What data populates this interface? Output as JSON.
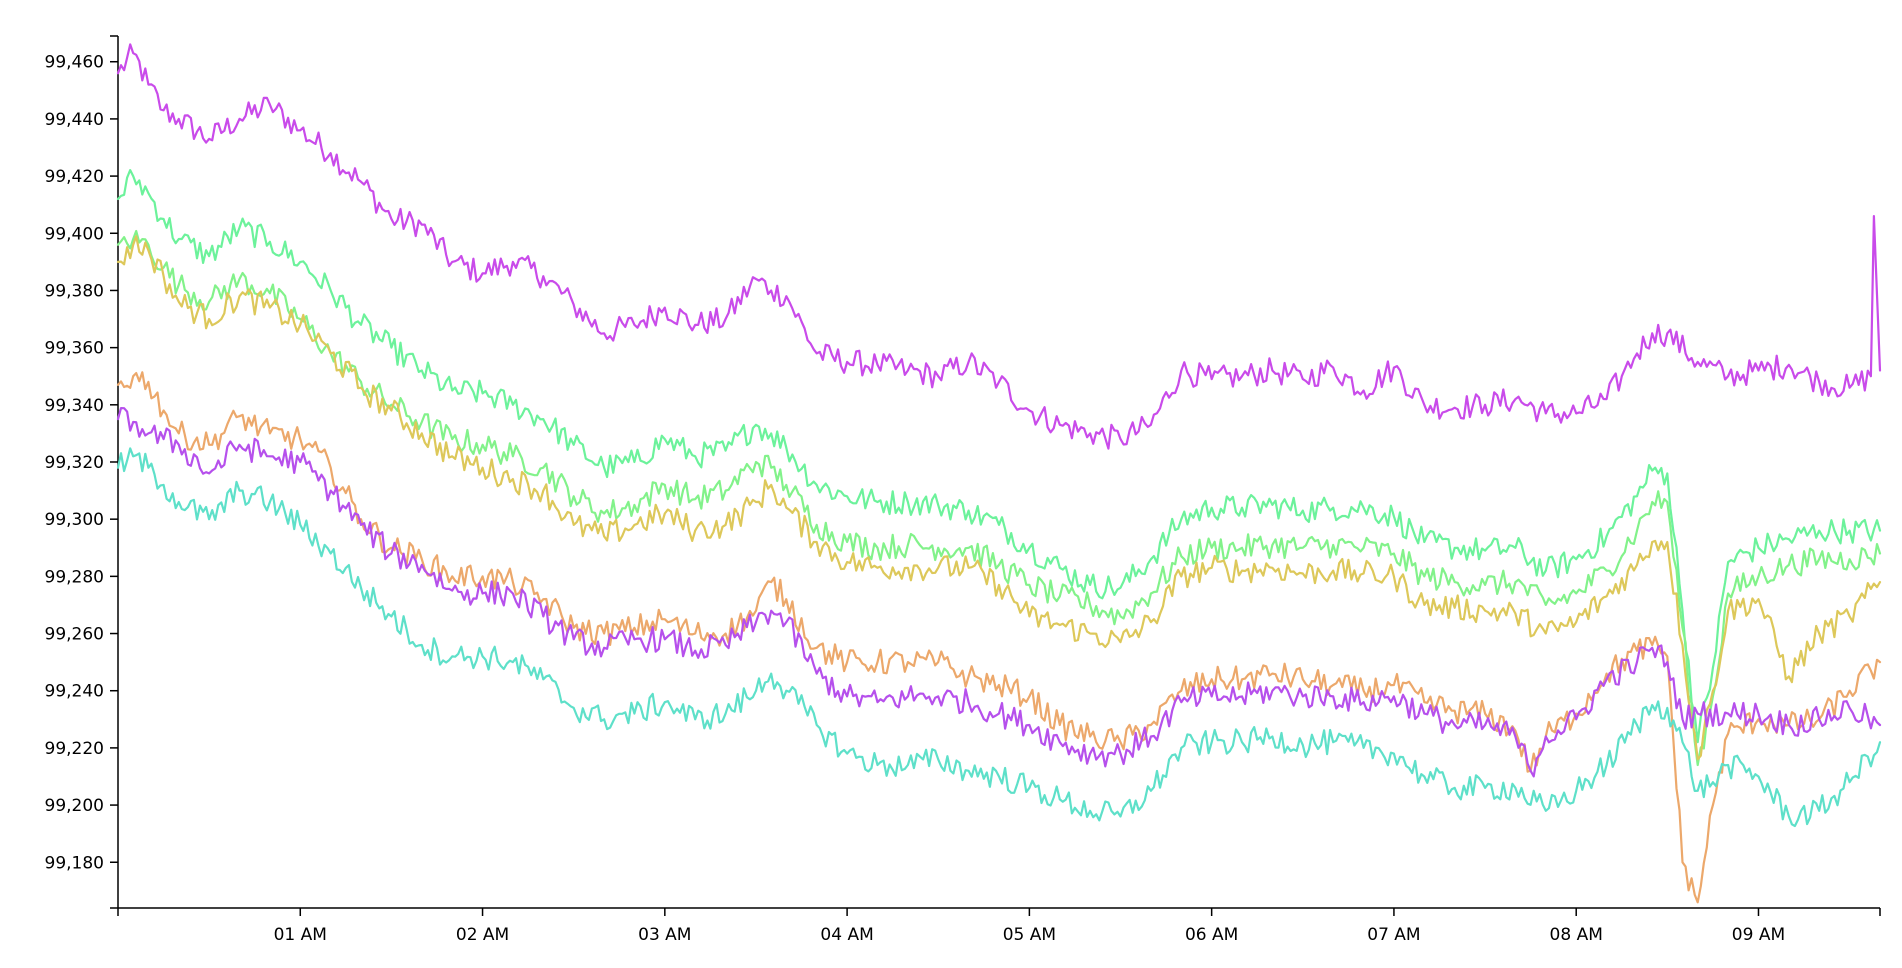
{
  "chart_data": {
    "type": "line",
    "title": "",
    "xlabel": "",
    "ylabel": "",
    "x_domain": [
      "00:00",
      "09:40"
    ],
    "ylim": [
      99164,
      99469
    ],
    "x_ticks": [
      {
        "time": "01:00",
        "label": "01 AM"
      },
      {
        "time": "02:00",
        "label": "02 AM"
      },
      {
        "time": "03:00",
        "label": "03 AM"
      },
      {
        "time": "04:00",
        "label": "04 AM"
      },
      {
        "time": "05:00",
        "label": "05 AM"
      },
      {
        "time": "06:00",
        "label": "06 AM"
      },
      {
        "time": "07:00",
        "label": "07 AM"
      },
      {
        "time": "08:00",
        "label": "08 AM"
      },
      {
        "time": "09:00",
        "label": "09 AM"
      }
    ],
    "y_ticks": [
      {
        "value": 99180,
        "label": "99,180"
      },
      {
        "value": 99200,
        "label": "99,200"
      },
      {
        "value": 99220,
        "label": "99,220"
      },
      {
        "value": 99240,
        "label": "99,240"
      },
      {
        "value": 99260,
        "label": "99,260"
      },
      {
        "value": 99280,
        "label": "99,280"
      },
      {
        "value": 99300,
        "label": "99,300"
      },
      {
        "value": 99320,
        "label": "99,320"
      },
      {
        "value": 99340,
        "label": "99,340"
      },
      {
        "value": 99360,
        "label": "99,360"
      },
      {
        "value": 99380,
        "label": "99,380"
      },
      {
        "value": 99400,
        "label": "99,400"
      },
      {
        "value": 99420,
        "label": "99,420"
      },
      {
        "value": 99440,
        "label": "99,440"
      },
      {
        "value": 99460,
        "label": "99,460"
      }
    ],
    "grid": false,
    "legend": "none",
    "series": [
      {
        "color": "#c94bea",
        "x": [
          "00:00",
          "00:05",
          "00:10",
          "00:15",
          "00:20",
          "00:30",
          "00:40",
          "00:50",
          "01:00",
          "01:10",
          "01:20",
          "01:30",
          "01:40",
          "01:50",
          "02:00",
          "02:10",
          "02:20",
          "02:30",
          "02:40",
          "02:50",
          "03:00",
          "03:10",
          "03:20",
          "03:30",
          "03:35",
          "03:40",
          "03:50",
          "04:00",
          "04:10",
          "04:20",
          "04:30",
          "04:40",
          "04:50",
          "05:00",
          "05:10",
          "05:20",
          "05:30",
          "05:40",
          "05:50",
          "06:00",
          "06:10",
          "06:20",
          "06:30",
          "06:40",
          "06:50",
          "07:00",
          "07:10",
          "07:20",
          "07:30",
          "07:40",
          "07:50",
          "08:00",
          "08:10",
          "08:15",
          "08:20",
          "08:25",
          "08:30",
          "08:40",
          "08:50",
          "09:00",
          "09:10",
          "09:20",
          "09:30",
          "09:37",
          "09:38",
          "09:40"
        ],
        "y": [
          99456,
          99463,
          99452,
          99443,
          99440,
          99433,
          99440,
          99445,
          99436,
          99428,
          99418,
          99405,
          99403,
          99390,
          99386,
          99390,
          99385,
          99375,
          99365,
          99368,
          99374,
          99368,
          99370,
          99384,
          99380,
          99378,
          99358,
          99355,
          99354,
          99352,
          99350,
          99355,
          99348,
          99338,
          99333,
          99330,
          99328,
          99333,
          99352,
          99349,
          99350,
          99352,
          99349,
          99353,
          99345,
          99353,
          99340,
          99339,
          99340,
          99342,
          99337,
          99337,
          99342,
          99350,
          99358,
          99365,
          99365,
          99355,
          99350,
          99352,
          99354,
          99348,
          99346,
          99350,
          99406,
          99352
        ]
      },
      {
        "color": "#6cf29b",
        "x": [
          "00:00",
          "00:05",
          "00:10",
          "00:15",
          "00:20",
          "00:30",
          "00:40",
          "00:50",
          "01:00",
          "01:10",
          "01:20",
          "01:30",
          "01:40",
          "01:50",
          "02:00",
          "02:10",
          "02:20",
          "02:30",
          "02:40",
          "02:50",
          "03:00",
          "03:10",
          "03:20",
          "03:30",
          "03:35",
          "03:40",
          "03:50",
          "04:00",
          "04:10",
          "04:20",
          "04:30",
          "04:40",
          "04:50",
          "05:00",
          "05:10",
          "05:20",
          "05:30",
          "05:40",
          "05:50",
          "06:00",
          "06:10",
          "06:20",
          "06:30",
          "06:40",
          "06:50",
          "07:00",
          "07:10",
          "07:20",
          "07:30",
          "07:40",
          "07:50",
          "08:00",
          "08:10",
          "08:20",
          "08:25",
          "08:30",
          "08:35",
          "08:40",
          "08:45",
          "08:50",
          "09:00",
          "09:10",
          "09:20",
          "09:30",
          "09:40"
        ],
        "y": [
          99412,
          99420,
          99414,
          99405,
          99398,
          99392,
          99402,
          99397,
          99390,
          99380,
          99368,
          99360,
          99352,
          99345,
          99344,
          99340,
          99335,
          99326,
          99318,
          99320,
          99328,
          99322,
          99324,
          99333,
          99330,
          99325,
          99312,
          99308,
          99306,
          99306,
          99305,
          99303,
          99298,
          99290,
          99283,
          99277,
          99276,
          99286,
          99300,
          99304,
          99304,
          99305,
          99303,
          99304,
          99304,
          99301,
          99292,
          99290,
          99289,
          99290,
          99282,
          99286,
          99294,
          99308,
          99317,
          99316,
          99268,
          99222,
          99248,
          99285,
          99290,
          99293,
          99296,
          99296,
          99296
        ]
      },
      {
        "color": "#82f28a",
        "x": [
          "00:00",
          "00:05",
          "00:10",
          "00:15",
          "00:20",
          "00:30",
          "00:40",
          "00:50",
          "01:00",
          "01:10",
          "01:20",
          "01:30",
          "01:40",
          "01:50",
          "02:00",
          "02:10",
          "02:20",
          "02:30",
          "02:40",
          "02:50",
          "03:00",
          "03:10",
          "03:20",
          "03:30",
          "03:35",
          "03:40",
          "03:50",
          "04:00",
          "04:10",
          "04:20",
          "04:30",
          "04:40",
          "04:50",
          "05:00",
          "05:10",
          "05:20",
          "05:30",
          "05:40",
          "05:50",
          "06:00",
          "06:10",
          "06:20",
          "06:30",
          "06:40",
          "06:50",
          "07:00",
          "07:10",
          "07:20",
          "07:30",
          "07:40",
          "07:50",
          "08:00",
          "08:10",
          "08:20",
          "08:25",
          "08:30",
          "08:35",
          "08:40",
          "08:45",
          "08:50",
          "09:00",
          "09:10",
          "09:20",
          "09:30",
          "09:40"
        ],
        "y": [
          99396,
          99398,
          99396,
          99388,
          99382,
          99376,
          99384,
          99379,
          99370,
          99358,
          99348,
          99340,
          99334,
          99328,
          99326,
          99322,
          99318,
          99308,
          99302,
          99305,
          99312,
          99307,
          99310,
          99320,
          99318,
          99312,
          99298,
          99292,
          99290,
          99291,
          99290,
          99290,
          99284,
          99277,
          99273,
          99270,
          99266,
          99274,
          99287,
          99290,
          99290,
          99291,
          99290,
          99291,
          99290,
          99288,
          99280,
          99278,
          99277,
          99278,
          99270,
          99274,
          99282,
          99296,
          99306,
          99306,
          99262,
          99214,
          99238,
          99274,
          99280,
          99284,
          99286,
          99286,
          99288
        ]
      },
      {
        "color": "#ddc85a",
        "x": [
          "00:00",
          "00:05",
          "00:10",
          "00:15",
          "00:20",
          "00:30",
          "00:40",
          "00:50",
          "01:00",
          "01:10",
          "01:20",
          "01:30",
          "01:40",
          "01:50",
          "02:00",
          "02:10",
          "02:20",
          "02:30",
          "02:40",
          "02:50",
          "03:00",
          "03:10",
          "03:20",
          "03:30",
          "03:35",
          "03:40",
          "03:50",
          "04:00",
          "04:10",
          "04:20",
          "04:30",
          "04:40",
          "04:50",
          "05:00",
          "05:10",
          "05:20",
          "05:30",
          "05:40",
          "05:50",
          "06:00",
          "06:10",
          "06:20",
          "06:30",
          "06:40",
          "06:50",
          "07:00",
          "07:10",
          "07:20",
          "07:30",
          "07:40",
          "07:50",
          "08:00",
          "08:10",
          "08:20",
          "08:25",
          "08:30",
          "08:35",
          "08:40",
          "08:45",
          "08:50",
          "09:00",
          "09:10",
          "09:20",
          "09:30",
          "09:40"
        ],
        "y": [
          99390,
          99396,
          99394,
          99385,
          99376,
          99370,
          99378,
          99374,
          99368,
          99358,
          99346,
          99338,
          99330,
          99322,
          99318,
          99314,
          99310,
          99298,
          99294,
          99298,
          99302,
          99296,
          99298,
          99306,
          99312,
          99304,
          99292,
          99285,
          99283,
          99283,
          99283,
          99283,
          99277,
          99266,
          99263,
          99260,
          99257,
          99264,
          99280,
          99283,
          99282,
          99283,
          99281,
          99282,
          99281,
          99280,
          99270,
          99269,
          99268,
          99267,
          99260,
          99264,
          99273,
          99284,
          99292,
          99292,
          99256,
          99216,
          99240,
          99268,
          99272,
          99245,
          99260,
          99266,
          99278
        ]
      },
      {
        "color": "#eca86b",
        "x": [
          "00:00",
          "00:05",
          "00:10",
          "00:15",
          "00:20",
          "00:30",
          "00:40",
          "00:50",
          "01:00",
          "01:10",
          "01:20",
          "01:30",
          "01:40",
          "01:50",
          "02:00",
          "02:10",
          "02:20",
          "02:30",
          "02:40",
          "02:50",
          "03:00",
          "03:10",
          "03:20",
          "03:30",
          "03:35",
          "03:40",
          "03:50",
          "04:00",
          "04:10",
          "04:20",
          "04:30",
          "04:40",
          "04:50",
          "05:00",
          "05:10",
          "05:20",
          "05:30",
          "05:40",
          "05:50",
          "06:00",
          "06:10",
          "06:20",
          "06:30",
          "06:40",
          "06:50",
          "07:00",
          "07:10",
          "07:20",
          "07:30",
          "07:40",
          "07:45",
          "07:50",
          "08:00",
          "08:10",
          "08:20",
          "08:25",
          "08:30",
          "08:35",
          "08:40",
          "08:45",
          "08:50",
          "09:00",
          "09:10",
          "09:20",
          "09:30",
          "09:40"
        ],
        "y": [
          99347,
          99350,
          99348,
          99338,
          99330,
          99326,
          99336,
          99330,
          99328,
          99318,
          99300,
          99290,
          99286,
          99280,
          99280,
          99278,
          99272,
          99262,
          99260,
          99262,
          99265,
          99260,
          99260,
          99268,
          99278,
          99272,
          99255,
          99250,
          99250,
          99250,
          99250,
          99245,
          99242,
          99238,
          99228,
          99224,
          99222,
          99228,
          99240,
          99244,
          99244,
          99246,
          99244,
          99242,
          99240,
          99242,
          99236,
          99233,
          99232,
          99226,
          99212,
          99224,
          99232,
          99246,
          99254,
          99256,
          99252,
          99180,
          99166,
          99200,
          99225,
          99230,
          99228,
          99230,
          99240,
          99250
        ]
      },
      {
        "color": "#b650ec",
        "x": [
          "00:00",
          "00:05",
          "00:10",
          "00:15",
          "00:20",
          "00:30",
          "00:40",
          "00:50",
          "01:00",
          "01:10",
          "01:20",
          "01:30",
          "01:40",
          "01:50",
          "02:00",
          "02:10",
          "02:20",
          "02:30",
          "02:40",
          "02:50",
          "03:00",
          "03:10",
          "03:20",
          "03:30",
          "03:35",
          "03:40",
          "03:50",
          "04:00",
          "04:10",
          "04:20",
          "04:30",
          "04:40",
          "04:50",
          "05:00",
          "05:10",
          "05:20",
          "05:30",
          "05:40",
          "05:50",
          "06:00",
          "06:10",
          "06:20",
          "06:30",
          "06:40",
          "06:50",
          "07:00",
          "07:10",
          "07:20",
          "07:30",
          "07:40",
          "07:45",
          "07:50",
          "08:00",
          "08:10",
          "08:20",
          "08:25",
          "08:30",
          "08:35",
          "08:40",
          "08:50",
          "09:00",
          "09:10",
          "09:20",
          "09:30",
          "09:40"
        ],
        "y": [
          99335,
          99334,
          99330,
          99328,
          99326,
          99316,
          99326,
          99322,
          99320,
          99310,
          99298,
          99288,
          99284,
          99275,
          99274,
          99274,
          99266,
          99258,
          99255,
          99258,
          99258,
          99254,
          99256,
          99264,
          99268,
          99264,
          99246,
          99238,
          99236,
          99238,
          99238,
          99236,
          99232,
          99228,
          99222,
          99218,
          99218,
          99224,
          99236,
          99238,
          99238,
          99240,
          99238,
          99238,
          99236,
          99238,
          99232,
          99228,
          99228,
          99224,
          99212,
          99224,
          99230,
          99244,
          99250,
          99255,
          99250,
          99230,
          99232,
          99232,
          99232,
          99228,
          99230,
          99234,
          99228
        ]
      },
      {
        "color": "#5ee0c9",
        "x": [
          "00:00",
          "00:05",
          "00:10",
          "00:15",
          "00:20",
          "00:30",
          "00:40",
          "00:50",
          "01:00",
          "01:10",
          "01:20",
          "01:30",
          "01:40",
          "01:50",
          "02:00",
          "02:10",
          "02:20",
          "02:30",
          "02:40",
          "02:50",
          "03:00",
          "03:10",
          "03:20",
          "03:30",
          "03:35",
          "03:40",
          "03:50",
          "04:00",
          "04:10",
          "04:20",
          "04:30",
          "04:40",
          "04:50",
          "05:00",
          "05:10",
          "05:20",
          "05:30",
          "05:40",
          "05:50",
          "06:00",
          "06:10",
          "06:20",
          "06:30",
          "06:40",
          "06:50",
          "07:00",
          "07:10",
          "07:20",
          "07:30",
          "07:40",
          "07:50",
          "08:00",
          "08:10",
          "08:20",
          "08:25",
          "08:30",
          "08:35",
          "08:40",
          "08:45",
          "08:50",
          "09:00",
          "09:10",
          "09:20",
          "09:30",
          "09:40"
        ],
        "y": [
          99318,
          99322,
          99318,
          99312,
          99306,
          99300,
          99310,
          99306,
          99298,
          99288,
          99276,
          99266,
          99256,
          99252,
          99252,
          99250,
          99244,
          99234,
          99230,
          99232,
          99236,
          99230,
          99232,
          99240,
          99246,
          99240,
          99228,
          99218,
          99214,
          99214,
          99216,
          99212,
          99210,
          99206,
          99202,
          99198,
          99196,
          99205,
          99220,
          99222,
          99222,
          99224,
          99221,
          99222,
          99220,
          99218,
          99210,
          99206,
          99206,
          99206,
          99198,
          99205,
          99214,
          99228,
          99235,
          99234,
          99222,
          99205,
          99208,
          99214,
          99210,
          99196,
          99198,
          99208,
          99222
        ]
      }
    ]
  }
}
